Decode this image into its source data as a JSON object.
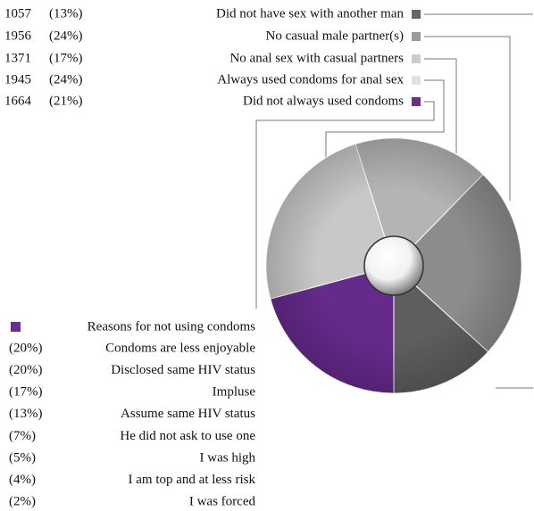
{
  "chart_data": {
    "type": "pie",
    "categories": [
      "Did not have sex with another man",
      "No casual male partner(s)",
      "No anal sex with casual partners",
      "Always used condoms for anal sex",
      "Did not always used condoms"
    ],
    "values": [
      1057,
      1956,
      1371,
      1945,
      1664
    ],
    "percent_labels": [
      "(13%)",
      "(24%)",
      "(17%)",
      "(24%)",
      "(21%)"
    ],
    "colors": [
      "#5e5e5e",
      "#8c8c8c",
      "#b4b4b4",
      "#c8c8c8",
      "#652a8c"
    ],
    "legend_colors": [
      "#666666",
      "#9a9a9a",
      "#cccccc",
      "#e2e2e2",
      "#6b2d8e"
    ],
    "reasons": {
      "title": "Reasons for not using condoms",
      "color": "#6b2d8e",
      "items": [
        {
          "percent": "(20%)",
          "reason": "Condoms are less enjoyable"
        },
        {
          "percent": "(20%)",
          "reason": "Disclosed same HIV status"
        },
        {
          "percent": "(17%)",
          "reason": "Impluse"
        },
        {
          "percent": "(13%)",
          "reason": "Assume same HIV status"
        },
        {
          "percent": "(7%)",
          "reason": "He did not ask to use one"
        },
        {
          "percent": "(5%)",
          "reason": "I was high"
        },
        {
          "percent": "(4%)",
          "reason": "I am top and at less risk"
        },
        {
          "percent": "(2%)",
          "reason": "I was forced"
        }
      ]
    }
  }
}
